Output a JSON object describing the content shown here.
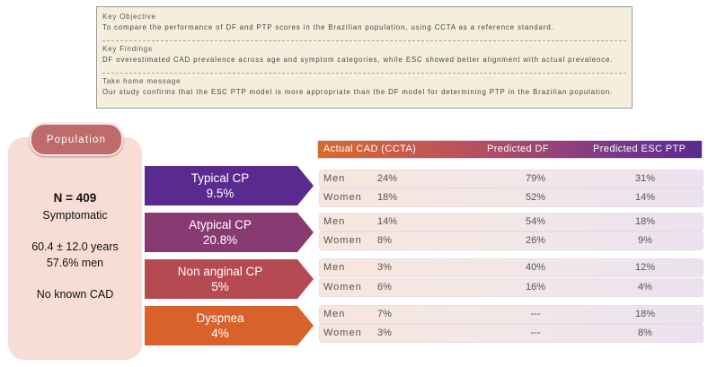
{
  "key_box": {
    "objective_heading": "Key Objective",
    "objective_text": "To compare the performance of DF and PTP scores in the Brazilian population, using CCTA as a reference standard.",
    "findings_heading": "Key Findings",
    "findings_text": "DF overestimated CAD prevalence across age and symptom categories, while ESC showed better alignment with actual prevalence.",
    "message_heading": "Take home message",
    "message_text": "Our study confirms that the ESC PTP model is more appropriate than the DF model for determining PTP in the Brazilian population."
  },
  "population": {
    "label": "Population",
    "n": "N = 409",
    "symptomatic": "Symptomatic",
    "age": "60.4 ± 12.0 years",
    "men": "57.6% men",
    "cad": "No known CAD"
  },
  "columns": {
    "actual": "Actual CAD (CCTA)",
    "predicted_df": "Predicted DF",
    "predicted_esc": "Predicted ESC PTP"
  },
  "categories": [
    {
      "name": "Typical CP",
      "pct": "9.5%",
      "color": "#5a2a8f",
      "rows": [
        {
          "sex": "Men",
          "actual": "24%",
          "df": "79%",
          "esc": "31%"
        },
        {
          "sex": "Women",
          "actual": "18%",
          "df": "52%",
          "esc": "14%"
        }
      ]
    },
    {
      "name": "Atypical CP",
      "pct": "20.8%",
      "color": "#8a3a72",
      "rows": [
        {
          "sex": "Men",
          "actual": "14%",
          "df": "54%",
          "esc": "18%"
        },
        {
          "sex": "Women",
          "actual": "8%",
          "df": "26%",
          "esc": "9%"
        }
      ]
    },
    {
      "name": "Non anginal CP",
      "pct": "5%",
      "color": "#b54a52",
      "rows": [
        {
          "sex": "Men",
          "actual": "3%",
          "df": "40%",
          "esc": "12%"
        },
        {
          "sex": "Women",
          "actual": "6%",
          "df": "16%",
          "esc": "4%"
        }
      ]
    },
    {
      "name": "Dyspnea",
      "pct": "4%",
      "color": "#d9622b",
      "rows": [
        {
          "sex": "Men",
          "actual": "7%",
          "df": "---",
          "esc": "18%"
        },
        {
          "sex": "Women",
          "actual": "3%",
          "df": "---",
          "esc": "8%"
        }
      ]
    }
  ]
}
